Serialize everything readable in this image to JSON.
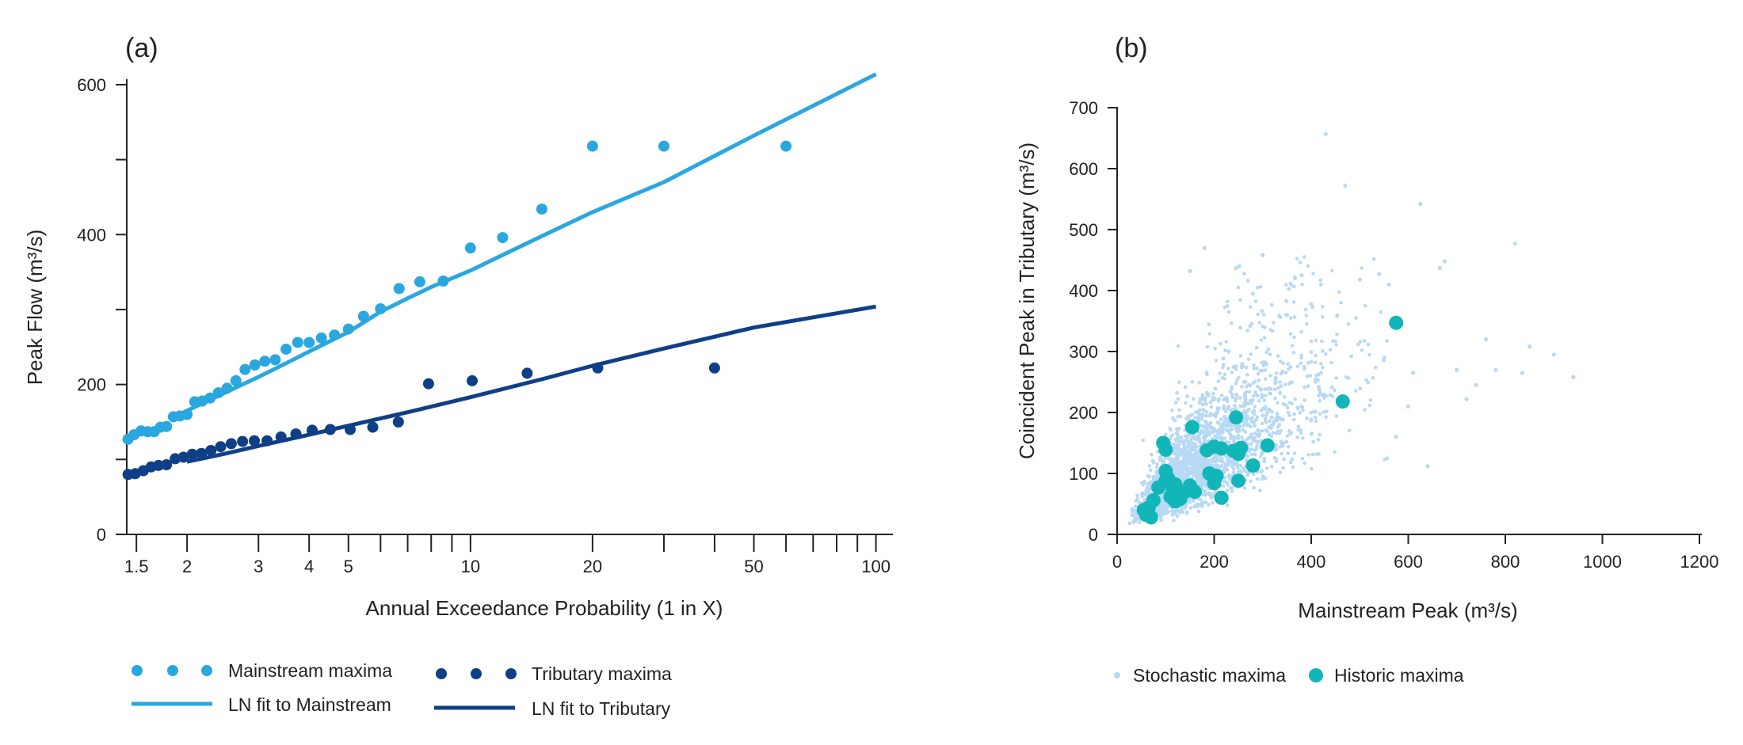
{
  "colors": {
    "mainstream": "#2ba7df",
    "tributary": "#0f3f87",
    "stochastic": "#b7d9f3",
    "historic": "#12b6b9",
    "axis": "#222222"
  },
  "chart_data": [
    {
      "type": "line",
      "panel_label": "(a)",
      "xscale": "log",
      "xlabel": "Annual Exceedance Probability (1 in X)",
      "ylabel": "Peak Flow (m³/s)",
      "xlim": [
        1.42,
        102
      ],
      "ylim": [
        0,
        620
      ],
      "xticks_labeled": [
        1.5,
        2,
        3,
        4,
        5,
        10,
        20,
        50,
        100
      ],
      "xtick_labels": [
        "1.5",
        "2",
        "3",
        "4",
        "5",
        "10",
        "20",
        "50",
        "100"
      ],
      "xticks_minor": [
        6,
        7,
        8,
        9,
        30,
        40,
        60,
        70,
        80,
        90
      ],
      "yticks": [
        0,
        200,
        400,
        600
      ],
      "ytick_labels": [
        "0",
        "200",
        "400",
        "600"
      ],
      "yticks_minor": [
        100,
        300,
        500
      ],
      "grid": false,
      "legend_position": "bottom",
      "series": [
        {
          "name": "Mainstream maxima",
          "kind": "points",
          "x": [
            1.43,
            1.48,
            1.54,
            1.6,
            1.66,
            1.72,
            1.78,
            1.85,
            1.92,
            2.0,
            2.09,
            2.18,
            2.28,
            2.39,
            2.51,
            2.64,
            2.78,
            2.94,
            3.11,
            3.3,
            3.51,
            3.75,
            4.0,
            4.29,
            4.62,
            5.0,
            5.45,
            6.0,
            6.67,
            7.5,
            8.57,
            10.0,
            12.0,
            15.0,
            20.0,
            30.0,
            60.0
          ],
          "y": [
            127,
            133,
            138,
            137,
            137,
            143,
            144,
            157,
            158,
            160,
            177,
            178,
            182,
            189,
            195,
            205,
            220,
            226,
            231,
            233,
            247,
            256,
            256,
            262,
            266,
            274,
            291,
            301,
            328,
            337,
            338,
            382,
            396,
            434,
            518,
            518,
            518
          ]
        },
        {
          "name": "LN fit to Mainstream",
          "kind": "line",
          "x": [
            2,
            2.5,
            3,
            3.5,
            4,
            5,
            6,
            7,
            8,
            10,
            15,
            20,
            30,
            50,
            100
          ],
          "y": [
            165,
            190,
            210,
            228,
            244,
            270,
            297,
            315,
            330,
            352,
            398,
            430,
            470,
            532,
            614
          ]
        },
        {
          "name": "Tributary maxima",
          "kind": "points",
          "x": [
            1.43,
            1.49,
            1.56,
            1.63,
            1.7,
            1.78,
            1.87,
            1.96,
            2.06,
            2.17,
            2.29,
            2.42,
            2.57,
            2.74,
            2.93,
            3.15,
            3.41,
            3.71,
            4.07,
            4.51,
            5.05,
            5.74,
            6.64,
            7.88,
            10.1,
            13.8,
            20.6,
            40.0
          ],
          "y": [
            80,
            81,
            85,
            90,
            92,
            93,
            101,
            103,
            107,
            108,
            112,
            117,
            121,
            124,
            125,
            125,
            130,
            134,
            139,
            140,
            140,
            143,
            150,
            201,
            205,
            215,
            222,
            222
          ]
        },
        {
          "name": "LN fit to Tributary",
          "kind": "line",
          "x": [
            2,
            2.5,
            3,
            4,
            5,
            7,
            10,
            15,
            20,
            30,
            50,
            100
          ],
          "y": [
            97,
            108,
            118,
            133,
            145,
            163,
            183,
            207,
            225,
            248,
            276,
            304
          ]
        }
      ]
    },
    {
      "type": "scatter",
      "panel_label": "(b)",
      "xlabel": "Mainstream Peak (m³/s)",
      "ylabel": "Coincident Peak in Tributary (m³/s)",
      "xlim": [
        0,
        1200
      ],
      "ylim": [
        0,
        700
      ],
      "xticks": [
        0,
        200,
        400,
        600,
        800,
        1000,
        1200
      ],
      "xtick_labels": [
        "0",
        "200",
        "400",
        "600",
        "800",
        "1000",
        "1200"
      ],
      "yticks": [
        0,
        100,
        200,
        300,
        400,
        500,
        600,
        700
      ],
      "ytick_labels": [
        "0",
        "100",
        "200",
        "300",
        "400",
        "500",
        "600",
        "700"
      ],
      "grid": false,
      "legend_position": "bottom",
      "series": [
        {
          "name": "Stochastic maxima",
          "kind": "cloud",
          "x": [
            430,
            470,
            820,
            625,
            180,
            245,
            252,
            150,
            300,
            540,
            675,
            665,
            700,
            780,
            835,
            850,
            940,
            640,
            600,
            720,
            380,
            420,
            560,
            500,
            900,
            740,
            760,
            610,
            575,
            350,
            280,
            230
          ],
          "y": [
            657,
            572,
            477,
            542,
            470,
            437,
            440,
            432,
            458,
            427,
            448,
            437,
            270,
            270,
            265,
            308,
            258,
            112,
            210,
            222,
            425,
            410,
            410,
            418,
            295,
            245,
            320,
            265,
            160,
            360,
            395,
            300
          ]
        },
        {
          "name": "Historic maxima",
          "kind": "points",
          "x": [
            575,
            465,
            155,
            245,
            95,
            100,
            200,
            215,
            255,
            240,
            310,
            250,
            185,
            280,
            100,
            105,
            190,
            250,
            205,
            120,
            100,
            150,
            115,
            200,
            85,
            125,
            140,
            110,
            75,
            55,
            60,
            70,
            65,
            130,
            160,
            120,
            215
          ],
          "y": [
            347,
            218,
            176,
            192,
            150,
            139,
            144,
            141,
            142,
            137,
            146,
            132,
            138,
            113,
            104,
            92,
            100,
            88,
            96,
            82,
            88,
            80,
            73,
            84,
            77,
            66,
            70,
            62,
            56,
            40,
            32,
            28,
            44,
            58,
            70,
            54,
            60
          ]
        }
      ]
    }
  ]
}
